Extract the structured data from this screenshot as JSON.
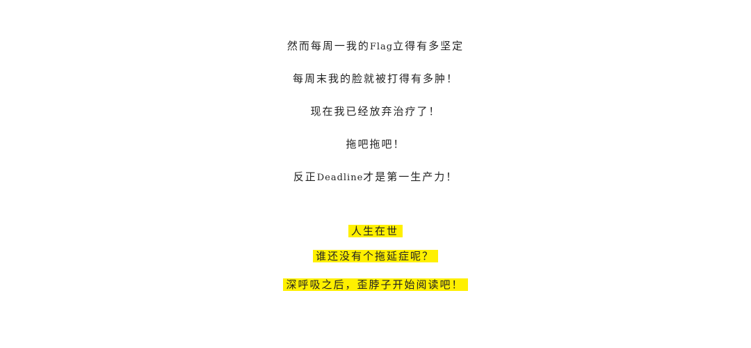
{
  "article": {
    "paragraphs": [
      {
        "before": "然而每周一我的",
        "latin": "Flag",
        "after": "立得有多坚定"
      },
      {
        "text": "每周末我的脸就被打得有多肿！"
      },
      {
        "text": "现在我已经放弃治疗了！"
      },
      {
        "text": "拖吧拖吧！"
      },
      {
        "before": "反正",
        "latin": "Deadline",
        "after": "才是第一生产力！"
      }
    ],
    "highlighted": [
      "人生在世",
      "谁还没有个拖延症呢？",
      "深呼吸之后，歪脖子开始阅读吧！"
    ],
    "highlight_color": "#fff000"
  }
}
